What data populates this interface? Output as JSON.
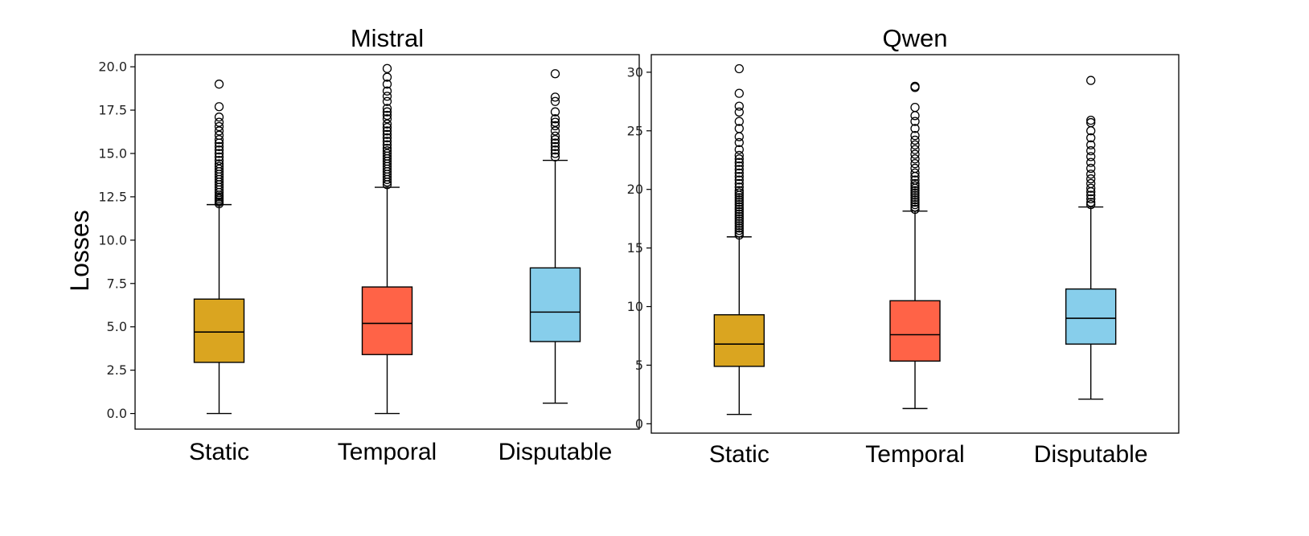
{
  "figure": {
    "ylabel": "Losses"
  },
  "colors": {
    "Static": "#DAA520",
    "Temporal": "#FF6347",
    "Disputable": "#87CEEB",
    "frame": "#000000",
    "flier": "#000000"
  },
  "chart_data": [
    {
      "type": "box",
      "title": "Mistral",
      "ylabel": "Losses",
      "ylim": [
        -0.9,
        20.7
      ],
      "yticks": [
        0.0,
        2.5,
        5.0,
        7.5,
        10.0,
        12.5,
        15.0,
        17.5,
        20.0
      ],
      "ytick_labels": [
        "0.0",
        "2.5",
        "5.0",
        "7.5",
        "10.0",
        "12.5",
        "15.0",
        "17.5",
        "20.0"
      ],
      "categories": [
        "Static",
        "Temporal",
        "Disputable"
      ],
      "boxes": [
        {
          "category": "Static",
          "whisker_low": 0.0,
          "q1": 2.95,
          "median": 4.7,
          "q3": 6.6,
          "whisker_high": 12.05,
          "fliers": [
            12.1,
            12.2,
            12.3,
            12.4,
            12.5,
            12.6,
            12.75,
            12.9,
            13.05,
            13.2,
            13.35,
            13.5,
            13.65,
            13.8,
            13.95,
            14.1,
            14.25,
            14.4,
            14.6,
            14.8,
            15.0,
            15.2,
            15.4,
            15.6,
            15.8,
            16.05,
            16.3,
            16.55,
            16.8,
            17.1,
            17.7,
            19.0
          ]
        },
        {
          "category": "Temporal",
          "whisker_low": 0.0,
          "q1": 3.4,
          "median": 5.2,
          "q3": 7.3,
          "whisker_high": 13.05,
          "fliers": [
            13.2,
            13.35,
            13.5,
            13.65,
            13.8,
            13.95,
            14.1,
            14.25,
            14.4,
            14.55,
            14.7,
            14.85,
            15.0,
            15.15,
            15.3,
            15.5,
            15.7,
            15.9,
            16.1,
            16.3,
            16.5,
            16.7,
            17.0,
            17.2,
            17.4,
            17.6,
            18.0,
            18.3,
            18.6,
            19.0,
            19.4,
            19.9
          ]
        },
        {
          "category": "Disputable",
          "whisker_low": 0.6,
          "q1": 4.15,
          "median": 5.85,
          "q3": 8.4,
          "whisker_high": 14.6,
          "fliers": [
            14.8,
            15.0,
            15.2,
            15.4,
            15.6,
            15.8,
            16.0,
            16.3,
            16.6,
            16.8,
            17.0,
            17.4,
            18.0,
            18.25,
            19.6
          ]
        }
      ]
    },
    {
      "type": "box",
      "title": "Qwen",
      "ylim": [
        -0.8,
        31.5
      ],
      "yticks": [
        0,
        5,
        10,
        15,
        20,
        25,
        30
      ],
      "ytick_labels": [
        "0",
        "5",
        "10",
        "15",
        "20",
        "25",
        "30"
      ],
      "categories": [
        "Static",
        "Temporal",
        "Disputable"
      ],
      "boxes": [
        {
          "category": "Static",
          "whisker_low": 0.8,
          "q1": 4.9,
          "median": 6.8,
          "q3": 9.3,
          "whisker_high": 15.95,
          "fliers": [
            16.1,
            16.3,
            16.5,
            16.7,
            16.9,
            17.1,
            17.3,
            17.5,
            17.7,
            17.9,
            18.1,
            18.3,
            18.5,
            18.7,
            18.9,
            19.1,
            19.3,
            19.5,
            19.7,
            19.9,
            20.2,
            20.5,
            20.8,
            21.1,
            21.4,
            21.7,
            22.0,
            22.3,
            22.6,
            22.9,
            23.4,
            24.0,
            24.5,
            25.2,
            25.8,
            26.6,
            27.1,
            28.2,
            30.3
          ]
        },
        {
          "category": "Temporal",
          "whisker_low": 1.3,
          "q1": 5.35,
          "median": 7.6,
          "q3": 10.5,
          "whisker_high": 18.15,
          "fliers": [
            18.3,
            18.5,
            18.7,
            18.9,
            19.1,
            19.3,
            19.5,
            19.7,
            19.9,
            20.1,
            20.3,
            20.5,
            20.8,
            21.1,
            21.4,
            21.8,
            22.2,
            22.6,
            23.0,
            23.4,
            23.8,
            24.2,
            24.6,
            25.2,
            25.8,
            26.3,
            27.0,
            28.7,
            28.8
          ]
        },
        {
          "category": "Disputable",
          "whisker_low": 2.1,
          "q1": 6.8,
          "median": 9.0,
          "q3": 11.5,
          "whisker_high": 18.5,
          "fliers": [
            18.7,
            18.9,
            19.2,
            19.5,
            19.8,
            20.1,
            20.5,
            20.9,
            21.3,
            21.8,
            22.3,
            22.8,
            23.3,
            23.8,
            24.4,
            25.0,
            25.7,
            25.9,
            29.3
          ]
        }
      ]
    }
  ]
}
